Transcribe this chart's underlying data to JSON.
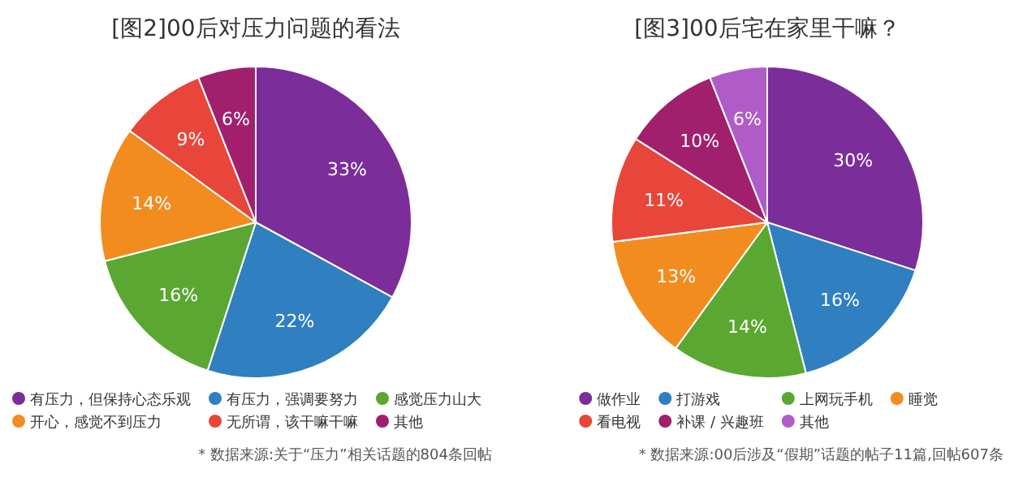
{
  "chart_data": [
    {
      "type": "pie",
      "title": "[图2]00后对压力问题的看法",
      "categories": [
        "有压力，但保持心态乐观",
        "有压力，强调要努力",
        "感觉压力山大",
        "开心，感觉不到压力",
        "无所谓，该干嘛干嘛",
        "其他"
      ],
      "values": [
        33,
        22,
        16,
        14,
        9,
        6
      ],
      "value_labels": [
        "33%",
        "22%",
        "16%",
        "14%",
        "9%",
        "6%"
      ],
      "colors": [
        "#7b2d9a",
        "#2f7fc1",
        "#5aa832",
        "#f28c1e",
        "#e8463a",
        "#a0206e"
      ],
      "legend": "bottom",
      "annotations": [
        "* 数据来源:关于“压力”相关话题的804条回帖"
      ]
    },
    {
      "type": "pie",
      "title": "[图3]00后宅在家里干嘛？",
      "categories": [
        "做作业",
        "打游戏",
        "上网玩手机",
        "睡觉",
        "看电视",
        "补课 / 兴趣班",
        "其他"
      ],
      "values": [
        30,
        16,
        14,
        13,
        11,
        10,
        6
      ],
      "value_labels": [
        "30%",
        "16%",
        "14%",
        "13%",
        "11%",
        "10%",
        "6%"
      ],
      "colors": [
        "#7b2d9a",
        "#2f7fc1",
        "#5aa832",
        "#f28c1e",
        "#e8463a",
        "#a0206e",
        "#b05cc8"
      ],
      "legend": "bottom",
      "annotations": [
        "* 数据来源:00后涉及“假期”话题的帖子11篇,回帖607条"
      ]
    }
  ]
}
